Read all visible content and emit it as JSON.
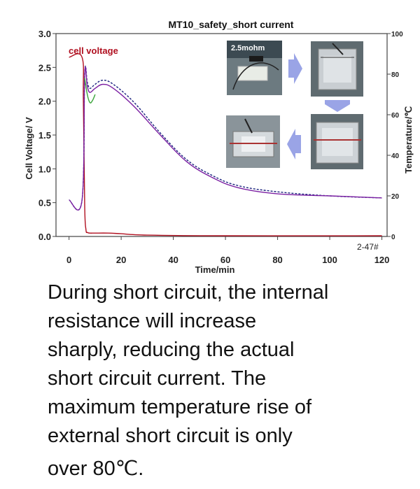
{
  "chart_data": {
    "type": "line",
    "title": "MT10_safety_short current",
    "xlabel": "Time/min",
    "ylabel": "Cell Voltage/ V",
    "y2label": "Temperature/℃",
    "xlim": [
      -5,
      122
    ],
    "ylim": [
      0,
      3.0
    ],
    "y2lim": [
      0,
      100
    ],
    "xticks": [
      0,
      20,
      40,
      60,
      80,
      100,
      120
    ],
    "yticks": [
      "0.0",
      "0.5",
      "1.0",
      "1.5",
      "2.0",
      "2.5",
      "3.0"
    ],
    "y2ticks": [
      "0",
      "20",
      "40",
      "60",
      "80",
      "100"
    ],
    "grid": false,
    "series": [
      {
        "name": "cell voltage",
        "axis": "left",
        "color": "#b01020",
        "x": [
          0,
          5,
          5.5,
          6,
          6.5,
          7,
          8,
          10,
          15,
          20,
          30,
          60,
          120
        ],
        "y": [
          2.65,
          2.65,
          2.0,
          0.45,
          0.1,
          0.06,
          0.05,
          0.05,
          0.05,
          0.04,
          0.02,
          0.01,
          0.01
        ]
      },
      {
        "axis": "right",
        "color": "#1a237e",
        "dashed": true,
        "x": [
          0,
          5,
          6,
          7,
          8,
          10,
          13,
          17,
          25,
          35,
          45,
          55,
          65,
          80,
          100,
          120
        ],
        "y": [
          18,
          18,
          80,
          76,
          73,
          75,
          77,
          75,
          66,
          51,
          38,
          30,
          25,
          22,
          20,
          19
        ]
      },
      {
        "axis": "right",
        "color": "#7b1fa2",
        "x": [
          0,
          5,
          6,
          7,
          8,
          10,
          13,
          17,
          25,
          35,
          45,
          55,
          65,
          80,
          100,
          120
        ],
        "y": [
          18,
          18,
          80,
          74,
          71,
          73,
          75,
          73,
          64,
          50,
          37,
          29,
          24,
          21,
          20,
          19
        ]
      },
      {
        "axis": "right",
        "color": "#3aa53a",
        "x": [
          6,
          7,
          8,
          9,
          10
        ],
        "y": [
          78,
          70,
          66,
          67,
          70
        ]
      }
    ],
    "annotations": [
      {
        "text": "cell voltage",
        "kind": "series-label"
      },
      {
        "text": "2-47#",
        "kind": "corner-note"
      }
    ]
  },
  "photos": {
    "first_label": "2.5mohm",
    "arrow_color": "#9aa4e6"
  },
  "caption_lines": [
    "During short circuit, the internal",
    "resistance will increase",
    "sharply, reducing the actual",
    "short circuit current. The",
    "maximum temperature rise of",
    "external short circuit is only",
    "over 80℃."
  ]
}
